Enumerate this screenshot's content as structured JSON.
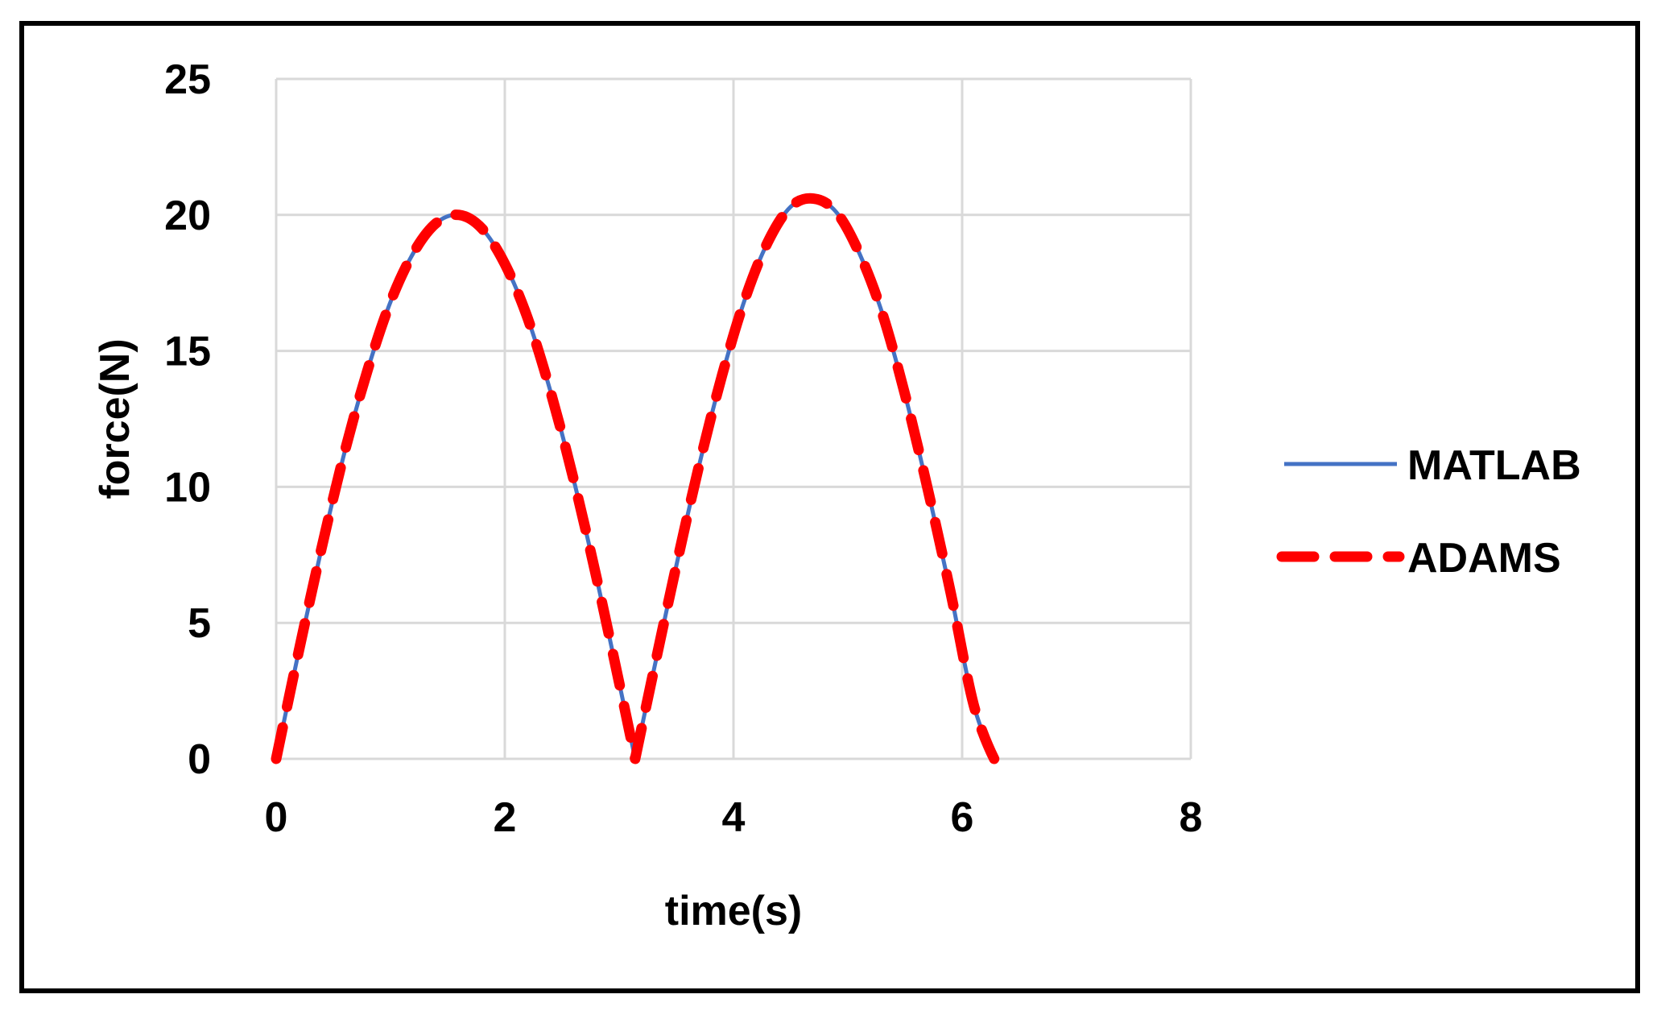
{
  "chart_data": {
    "type": "line",
    "title": "",
    "xlabel": "time(s)",
    "ylabel": "force(N)",
    "xlim": [
      0,
      8
    ],
    "ylim": [
      0,
      25
    ],
    "xticks": [
      "0",
      "2",
      "4",
      "6",
      "8"
    ],
    "yticks": [
      "0",
      "5",
      "10",
      "15",
      "20",
      "25"
    ],
    "grid": true,
    "legend_position": "right",
    "series": [
      {
        "name": "MATLAB",
        "color": "#4472C4",
        "style": "solid",
        "x": [
          0,
          0.2,
          0.4,
          0.6,
          0.8,
          1.0,
          1.2,
          1.4,
          1.6,
          1.8,
          2.0,
          2.2,
          2.4,
          2.6,
          2.8,
          3.0,
          3.14,
          3.3,
          3.5,
          3.7,
          3.9,
          4.1,
          4.3,
          4.5,
          4.7,
          4.9,
          5.1,
          5.3,
          5.5,
          5.7,
          5.9,
          6.1,
          6.28
        ],
        "y": [
          0,
          4.0,
          7.8,
          11.3,
          14.3,
          16.8,
          18.6,
          19.7,
          20.0,
          19.5,
          18.2,
          16.2,
          13.5,
          10.3,
          6.7,
          2.8,
          0,
          3.2,
          7.1,
          10.8,
          14.1,
          16.9,
          19.0,
          20.3,
          20.6,
          20.1,
          18.6,
          16.4,
          13.4,
          9.9,
          6.1,
          2.0,
          0
        ]
      },
      {
        "name": "ADAMS",
        "color": "#FF0000",
        "style": "dashed",
        "x": [
          0,
          0.2,
          0.4,
          0.6,
          0.8,
          1.0,
          1.2,
          1.4,
          1.6,
          1.8,
          2.0,
          2.2,
          2.4,
          2.6,
          2.8,
          3.0,
          3.14,
          3.3,
          3.5,
          3.7,
          3.9,
          4.1,
          4.3,
          4.5,
          4.7,
          4.9,
          5.1,
          5.3,
          5.5,
          5.7,
          5.9,
          6.1,
          6.28
        ],
        "y": [
          0,
          4.0,
          7.8,
          11.3,
          14.3,
          16.8,
          18.6,
          19.7,
          20.0,
          19.5,
          18.2,
          16.2,
          13.5,
          10.3,
          6.7,
          2.8,
          0,
          3.2,
          7.1,
          10.8,
          14.1,
          16.9,
          19.0,
          20.3,
          20.6,
          20.1,
          18.6,
          16.4,
          13.4,
          9.9,
          6.1,
          2.0,
          0
        ]
      }
    ]
  }
}
